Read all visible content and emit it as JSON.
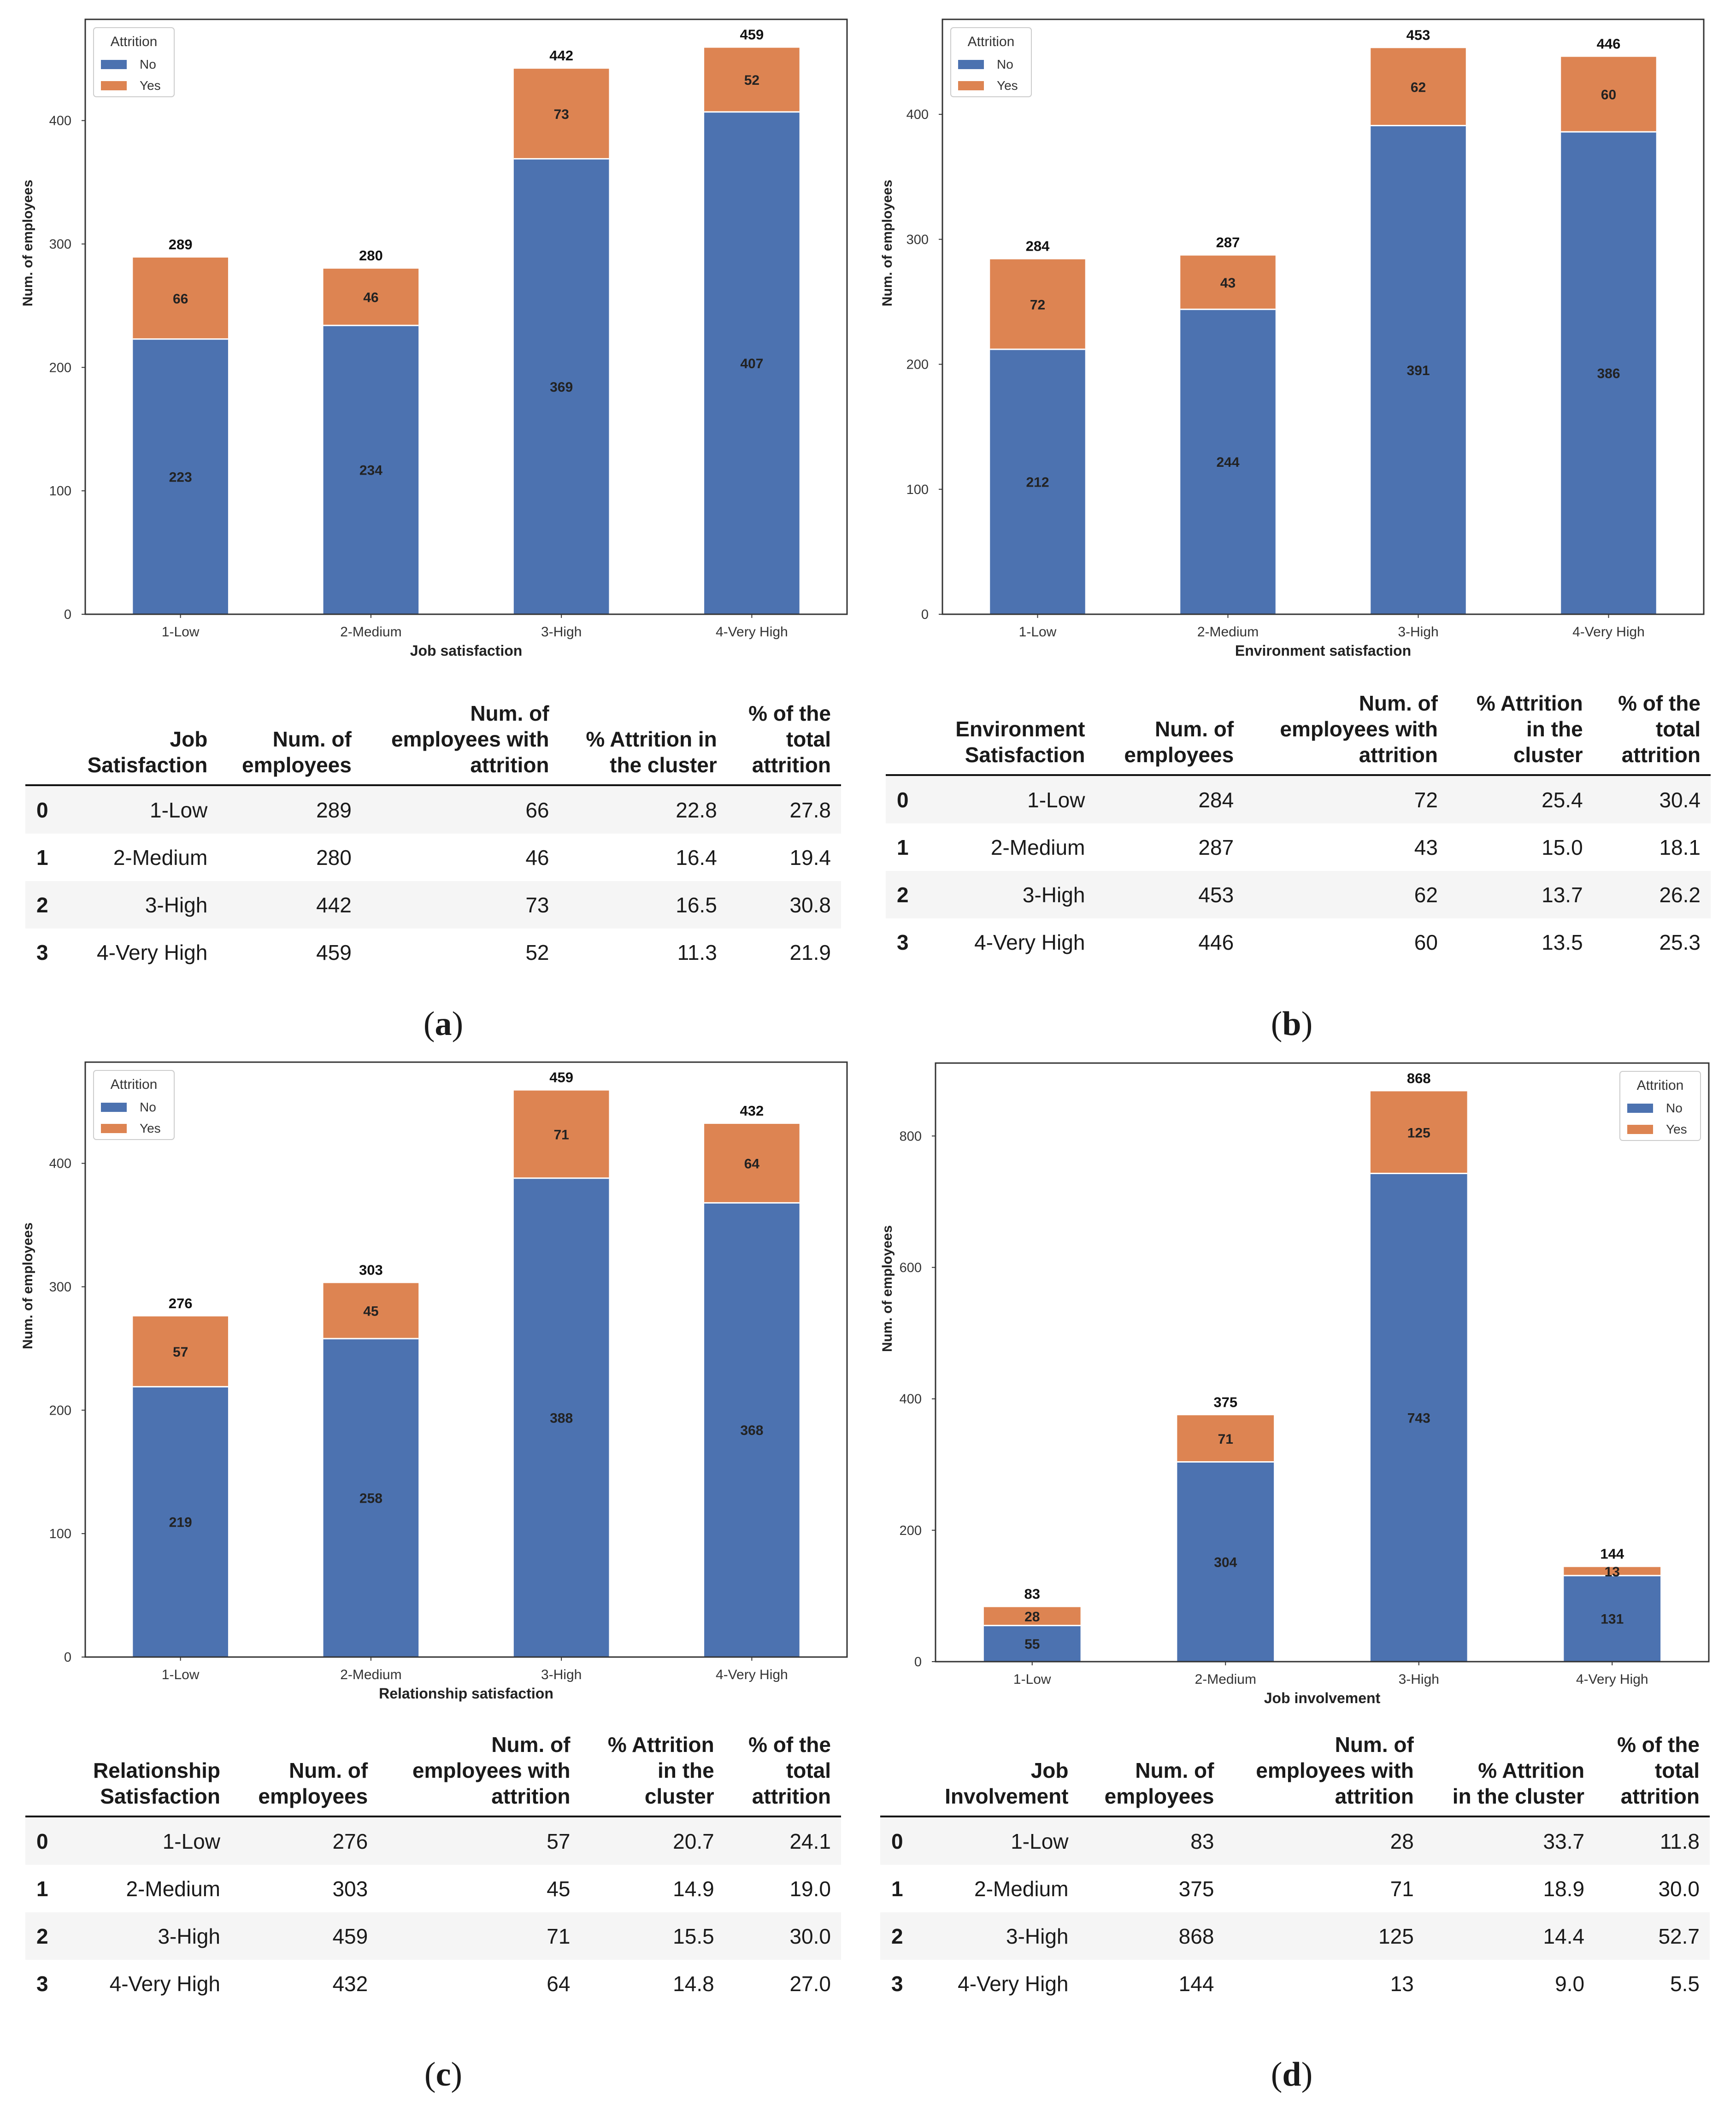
{
  "colors": {
    "no": "#4c72b0",
    "yes": "#dd8452",
    "frame": "#333333"
  },
  "chart_data": [
    {
      "id": "a",
      "type": "bar",
      "stacked": true,
      "categories": [
        "1-Low",
        "2-Medium",
        "3-High",
        "4-Very High"
      ],
      "series": [
        {
          "name": "No",
          "values": [
            223,
            234,
            369,
            407
          ]
        },
        {
          "name": "Yes",
          "values": [
            66,
            46,
            73,
            52
          ]
        }
      ],
      "totals": [
        289,
        280,
        442,
        459
      ],
      "xlabel": "Job satisfaction",
      "ylabel": "Num. of employees",
      "ylim": [
        0,
        482
      ],
      "yticks": [
        0,
        100,
        200,
        300,
        400
      ],
      "legend_title": "Attrition",
      "legend_position": "top-left"
    },
    {
      "id": "b",
      "type": "bar",
      "stacked": true,
      "categories": [
        "1-Low",
        "2-Medium",
        "3-High",
        "4-Very High"
      ],
      "series": [
        {
          "name": "No",
          "values": [
            212,
            244,
            391,
            386
          ]
        },
        {
          "name": "Yes",
          "values": [
            72,
            43,
            62,
            60
          ]
        }
      ],
      "totals": [
        284,
        287,
        453,
        446
      ],
      "xlabel": "Environment satisfaction",
      "ylabel": "Num. of employees",
      "ylim": [
        0,
        476
      ],
      "yticks": [
        0,
        100,
        200,
        300,
        400
      ],
      "legend_title": "Attrition",
      "legend_position": "top-left"
    },
    {
      "id": "c",
      "type": "bar",
      "stacked": true,
      "categories": [
        "1-Low",
        "2-Medium",
        "3-High",
        "4-Very High"
      ],
      "series": [
        {
          "name": "No",
          "values": [
            219,
            258,
            388,
            368
          ]
        },
        {
          "name": "Yes",
          "values": [
            57,
            45,
            71,
            64
          ]
        }
      ],
      "totals": [
        276,
        303,
        459,
        432
      ],
      "xlabel": "Relationship satisfaction",
      "ylabel": "Num. of employees",
      "ylim": [
        0,
        482
      ],
      "yticks": [
        0,
        100,
        200,
        300,
        400
      ],
      "legend_title": "Attrition",
      "legend_position": "top-left"
    },
    {
      "id": "d",
      "type": "bar",
      "stacked": true,
      "categories": [
        "1-Low",
        "2-Medium",
        "3-High",
        "4-Very High"
      ],
      "series": [
        {
          "name": "No",
          "values": [
            55,
            304,
            743,
            131
          ]
        },
        {
          "name": "Yes",
          "values": [
            28,
            71,
            125,
            13
          ]
        }
      ],
      "totals": [
        83,
        375,
        868,
        144
      ],
      "xlabel": "Job involvement",
      "ylabel": "Num. of employees",
      "ylim": [
        0,
        911
      ],
      "yticks": [
        0,
        200,
        400,
        600,
        800
      ],
      "legend_title": "Attrition",
      "legend_position": "top-right"
    }
  ],
  "tables": [
    {
      "id": "a",
      "headers": [
        [
          "Job",
          "Satisfaction"
        ],
        [
          "Num. of",
          "employees"
        ],
        [
          "Num. of",
          "employees with",
          "attrition"
        ],
        [
          "% Attrition in",
          "the cluster"
        ],
        [
          "% of the",
          "total",
          "attrition"
        ]
      ],
      "rows": [
        [
          "0",
          "1-Low",
          "289",
          "66",
          "22.8",
          "27.8"
        ],
        [
          "1",
          "2-Medium",
          "280",
          "46",
          "16.4",
          "19.4"
        ],
        [
          "2",
          "3-High",
          "442",
          "73",
          "16.5",
          "30.8"
        ],
        [
          "3",
          "4-Very High",
          "459",
          "52",
          "11.3",
          "21.9"
        ]
      ]
    },
    {
      "id": "b",
      "headers": [
        [
          "Environment",
          "Satisfaction"
        ],
        [
          "Num. of",
          "employees"
        ],
        [
          "Num. of",
          "employees with",
          "attrition"
        ],
        [
          "% Attrition",
          "in the",
          "cluster"
        ],
        [
          "% of the",
          "total",
          "attrition"
        ]
      ],
      "rows": [
        [
          "0",
          "1-Low",
          "284",
          "72",
          "25.4",
          "30.4"
        ],
        [
          "1",
          "2-Medium",
          "287",
          "43",
          "15.0",
          "18.1"
        ],
        [
          "2",
          "3-High",
          "453",
          "62",
          "13.7",
          "26.2"
        ],
        [
          "3",
          "4-Very High",
          "446",
          "60",
          "13.5",
          "25.3"
        ]
      ]
    },
    {
      "id": "c",
      "headers": [
        [
          "Relationship",
          "Satisfaction"
        ],
        [
          "Num. of",
          "employees"
        ],
        [
          "Num. of",
          "employees with",
          "attrition"
        ],
        [
          "% Attrition",
          "in the",
          "cluster"
        ],
        [
          "% of the",
          "total",
          "attrition"
        ]
      ],
      "rows": [
        [
          "0",
          "1-Low",
          "276",
          "57",
          "20.7",
          "24.1"
        ],
        [
          "1",
          "2-Medium",
          "303",
          "45",
          "14.9",
          "19.0"
        ],
        [
          "2",
          "3-High",
          "459",
          "71",
          "15.5",
          "30.0"
        ],
        [
          "3",
          "4-Very High",
          "432",
          "64",
          "14.8",
          "27.0"
        ]
      ]
    },
    {
      "id": "d",
      "headers": [
        [
          "Job",
          "Involvement"
        ],
        [
          "Num. of",
          "employees"
        ],
        [
          "Num. of",
          "employees with",
          "attrition"
        ],
        [
          "% Attrition",
          "in the cluster"
        ],
        [
          "% of the",
          "total",
          "attrition"
        ]
      ],
      "rows": [
        [
          "0",
          "1-Low",
          "83",
          "28",
          "33.7",
          "11.8"
        ],
        [
          "1",
          "2-Medium",
          "375",
          "71",
          "18.9",
          "30.0"
        ],
        [
          "2",
          "3-High",
          "868",
          "125",
          "14.4",
          "52.7"
        ],
        [
          "3",
          "4-Very High",
          "144",
          "13",
          "9.0",
          "5.5"
        ]
      ]
    }
  ],
  "captions": [
    "a",
    "b",
    "c",
    "d"
  ]
}
